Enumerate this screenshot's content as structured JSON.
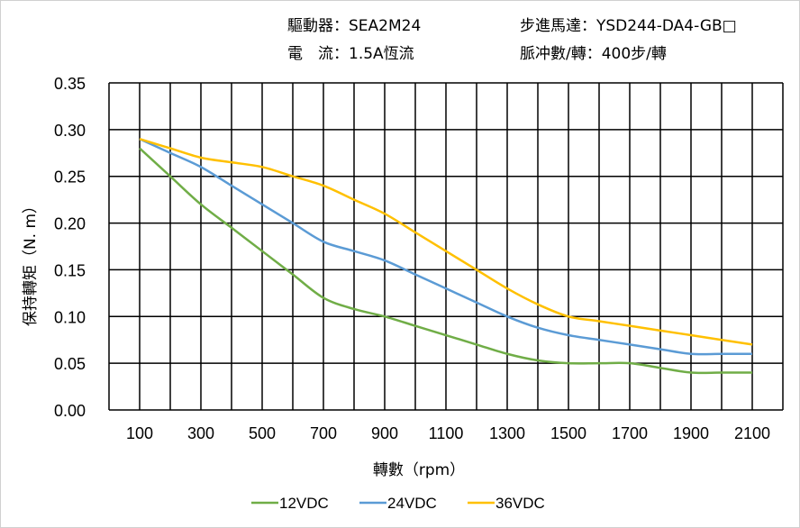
{
  "header": {
    "driver": "驅動器：SEA2M24",
    "motor": "步進馬達：YSD244-DA4-GB□",
    "current": "電　流：1.5A恆流",
    "pulses": "脈冲數/轉：400步/轉"
  },
  "chart_data": {
    "type": "line",
    "xlabel": "轉數（rpm）",
    "ylabel": "保持轉矩（N. m）",
    "xlim": [
      0,
      2200
    ],
    "ylim": [
      0,
      0.35
    ],
    "x_ticks": [
      "100",
      "300",
      "500",
      "700",
      "900",
      "1100",
      "1300",
      "1500",
      "1700",
      "1900",
      "2100"
    ],
    "y_ticks": [
      "0.00",
      "0.05",
      "0.10",
      "0.15",
      "0.20",
      "0.25",
      "0.30",
      "0.35"
    ],
    "grid": true,
    "legend": "bottom",
    "x": [
      100,
      200,
      300,
      400,
      500,
      600,
      700,
      800,
      900,
      1000,
      1100,
      1200,
      1300,
      1400,
      1500,
      1600,
      1700,
      1800,
      1900,
      2000,
      2100
    ],
    "series": [
      {
        "name": "12VDC",
        "color": "#70ad47",
        "values": [
          0.28,
          0.25,
          0.22,
          0.195,
          0.17,
          0.145,
          0.12,
          0.108,
          0.1,
          0.09,
          0.08,
          0.07,
          0.06,
          0.053,
          0.05,
          0.05,
          0.05,
          0.045,
          0.04,
          0.04,
          0.04
        ]
      },
      {
        "name": "24VDC",
        "color": "#5b9bd5",
        "values": [
          0.29,
          0.275,
          0.26,
          0.24,
          0.22,
          0.2,
          0.18,
          0.17,
          0.16,
          0.145,
          0.13,
          0.115,
          0.1,
          0.088,
          0.08,
          0.075,
          0.07,
          0.065,
          0.06,
          0.06,
          0.06
        ]
      },
      {
        "name": "36VDC",
        "color": "#ffc000",
        "values": [
          0.29,
          0.28,
          0.27,
          0.265,
          0.26,
          0.25,
          0.24,
          0.225,
          0.21,
          0.19,
          0.17,
          0.15,
          0.13,
          0.113,
          0.1,
          0.095,
          0.09,
          0.085,
          0.08,
          0.075,
          0.07
        ]
      }
    ]
  }
}
